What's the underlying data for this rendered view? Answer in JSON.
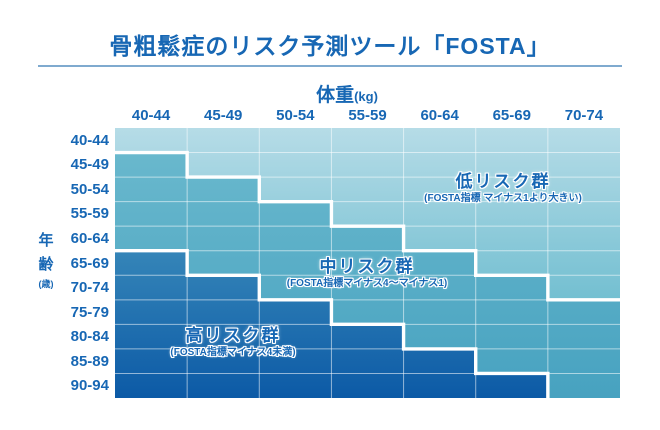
{
  "title": "骨粗鬆症のリスク予測ツール「FOSTA」",
  "x_axis": {
    "title": "体重",
    "unit": "(kg)"
  },
  "y_axis": {
    "title_chars": [
      "年",
      "齢"
    ],
    "unit": "(歳)"
  },
  "accent_color": "#1767b4",
  "rule_color": "#7faacf",
  "chart_data": {
    "type": "heatmap",
    "title": "骨粗鬆症のリスク予測ツール「FOSTA」",
    "xlabel": "体重(kg)",
    "ylabel": "年齢(歳)",
    "x_categories": [
      "40-44",
      "45-49",
      "50-54",
      "55-59",
      "60-64",
      "65-69",
      "70-74"
    ],
    "y_categories": [
      "40-44",
      "45-49",
      "50-54",
      "55-59",
      "60-64",
      "65-69",
      "70-74",
      "75-79",
      "80-84",
      "85-89",
      "90-94"
    ],
    "zones": [
      {
        "id": "low",
        "label": "低リスク群",
        "sublabel": "(FOSTA指標 マイナス1より大きい)",
        "gradient_top": "#b6dce7",
        "gradient_bottom": "#73bfd1"
      },
      {
        "id": "mid",
        "label": "中リスク群",
        "sublabel": "(FOSTA指標マイナス4～マイナス1)",
        "gradient_top": "#69b8cd",
        "gradient_bottom": "#47a2c0"
      },
      {
        "id": "high",
        "label": "高リスク群",
        "sublabel": "(FOSTA指標マイナス4未満)",
        "gradient_top": "#3585b8",
        "gradient_bottom": "#0c5aa6"
      }
    ],
    "low_zone_last_row_per_col": [
      1,
      2,
      3,
      4,
      5,
      6,
      7
    ],
    "high_zone_first_row_per_col": [
      6,
      7,
      8,
      9,
      10,
      11,
      null
    ],
    "grid_line_color": "rgba(255,255,255,0.55)",
    "boundary_color": "#ffffff",
    "legend_position": "inside-zones",
    "grid": true
  }
}
